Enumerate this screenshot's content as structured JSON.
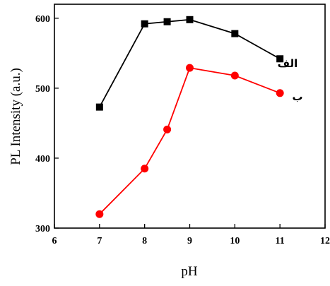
{
  "chart_data": {
    "type": "line",
    "title": "",
    "xlabel": "pH",
    "ylabel": "PL Intensity (a.u.)",
    "xlim": [
      6,
      12
    ],
    "ylim": [
      300,
      620
    ],
    "xticks": [
      6,
      7,
      8,
      9,
      10,
      11,
      12
    ],
    "yticks": [
      300,
      400,
      500,
      600
    ],
    "grid": false,
    "series": [
      {
        "name": "الف",
        "color": "#000000",
        "marker": "square",
        "x": [
          7,
          8,
          8.5,
          9,
          10,
          11
        ],
        "y": [
          473,
          592,
          595,
          598,
          578,
          542
        ]
      },
      {
        "name": "ب",
        "color": "#ff0000",
        "marker": "circle",
        "x": [
          7,
          8,
          8.5,
          9,
          10,
          11
        ],
        "y": [
          320,
          385,
          441,
          529,
          518,
          493
        ]
      }
    ]
  }
}
